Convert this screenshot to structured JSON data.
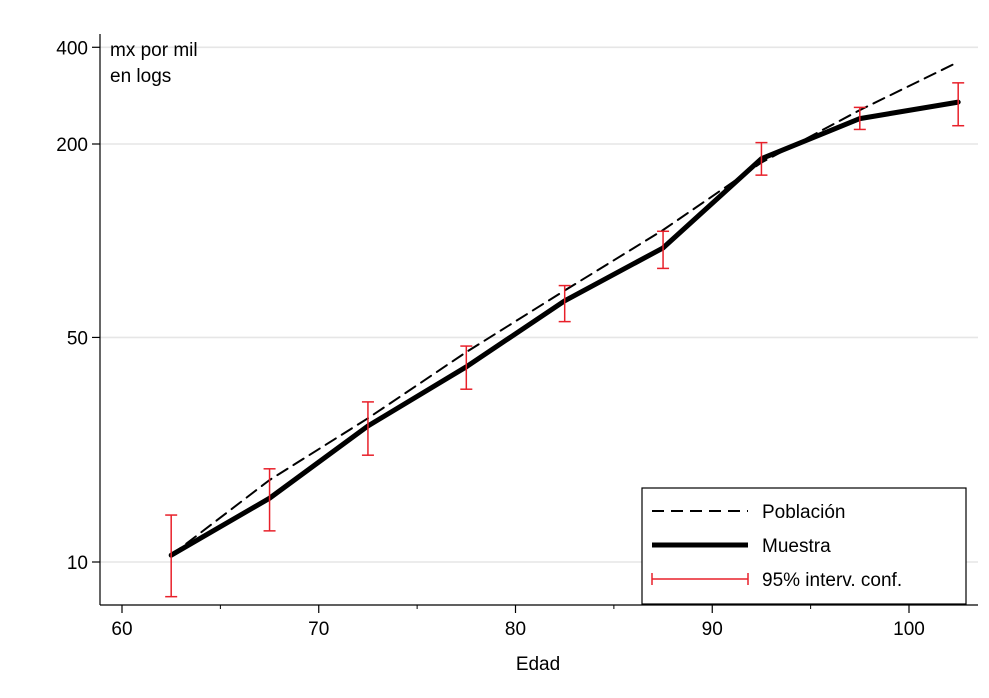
{
  "chart_data": {
    "type": "line",
    "ylabel_lines": [
      "mx por mil",
      "en logs"
    ],
    "xlabel": "Edad",
    "y_scale": "log",
    "xlim": [
      60,
      103
    ],
    "ylim": [
      8,
      400
    ],
    "x_ticks": [
      60,
      70,
      80,
      90,
      100
    ],
    "y_ticks": [
      10,
      50,
      200,
      400
    ],
    "grid": "horizontal",
    "legend_position": "bottom-right",
    "colors": {
      "poblacion": "#000000",
      "muestra": "#000000",
      "ci": "#e8202a",
      "grid": "#e6e6e6"
    },
    "series": [
      {
        "name": "Población",
        "style": "dashed",
        "x": [
          62.5,
          67.5,
          72.5,
          77.5,
          82.5,
          87.5,
          92.5,
          97.5,
          102.5
        ],
        "values": [
          10.5,
          18.0,
          28.0,
          45.0,
          70.0,
          108.0,
          175.0,
          255.0,
          360.0
        ]
      },
      {
        "name": "Muestra",
        "style": "solid",
        "x": [
          62.5,
          67.5,
          72.5,
          77.5,
          82.5,
          87.5,
          92.5,
          97.5,
          102.5
        ],
        "values": [
          10.5,
          15.8,
          26.5,
          40.5,
          65.0,
          95.0,
          180.0,
          240.0,
          270.0
        ]
      }
    ],
    "confidence_intervals": {
      "name": "95% interv. conf.",
      "x": [
        62.5,
        67.5,
        72.5,
        77.5,
        82.5,
        87.5,
        92.5,
        97.5,
        102.5
      ],
      "low": [
        7.8,
        12.5,
        21.5,
        34.5,
        56.0,
        82.0,
        160.0,
        222.0,
        228.0
      ],
      "high": [
        14.0,
        19.5,
        31.5,
        47.0,
        72.5,
        107.0,
        202.0,
        260.0,
        310.0
      ]
    },
    "legend": {
      "entries": [
        {
          "label": "Población",
          "key": "poblacion"
        },
        {
          "label": "Muestra",
          "key": "muestra"
        },
        {
          "label": "95% interv. conf.",
          "key": "ci"
        }
      ]
    }
  }
}
